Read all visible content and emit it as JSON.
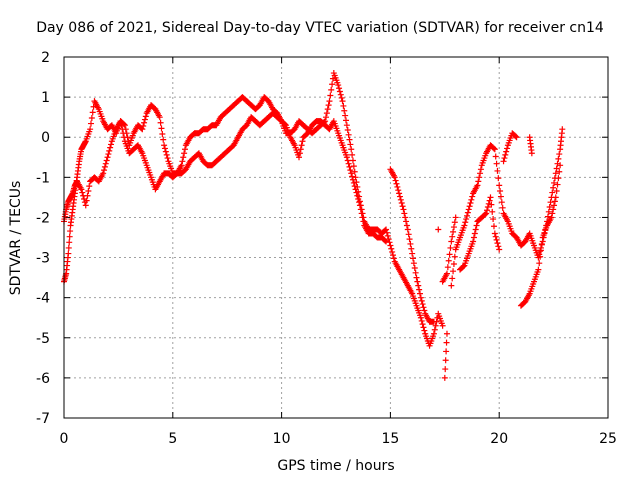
{
  "chart_data": {
    "type": "scatter",
    "title": "Day 086 of 2021, Sidereal Day-to-day VTEC variation (SDTVAR) for receiver cn14",
    "xlabel": "GPS time / hours",
    "ylabel": "SDTVAR / TECUs",
    "xlim": [
      0,
      25
    ],
    "ylim": [
      -7,
      2
    ],
    "xticks": [
      "0",
      "5",
      "10",
      "15",
      "20",
      "25"
    ],
    "yticks": [
      "2",
      "1",
      "0",
      "-1",
      "-2",
      "-3",
      "-4",
      "-5",
      "-6",
      "-7"
    ],
    "grid": true,
    "marker": "+",
    "color": "#ff0000",
    "series": [
      {
        "points": [
          [
            0.0,
            -3.6
          ],
          [
            0.1,
            -3.4
          ],
          [
            0.2,
            -2.9
          ],
          [
            0.3,
            -2.2
          ],
          [
            0.4,
            -1.8
          ],
          [
            0.5,
            -1.4
          ],
          [
            0.6,
            -1.0
          ],
          [
            0.7,
            -0.6
          ],
          [
            0.8,
            -0.3
          ],
          [
            0.9,
            -0.2
          ],
          [
            1.0,
            -0.1
          ],
          [
            1.2,
            0.2
          ],
          [
            1.4,
            0.9
          ],
          [
            1.6,
            0.7
          ],
          [
            1.8,
            0.4
          ],
          [
            2.0,
            0.2
          ],
          [
            2.2,
            0.3
          ],
          [
            2.4,
            0.1
          ],
          [
            2.6,
            0.4
          ],
          [
            2.8,
            0.3
          ],
          [
            3.0,
            -0.2
          ],
          [
            3.2,
            0.1
          ],
          [
            3.4,
            0.3
          ],
          [
            3.6,
            0.2
          ],
          [
            3.8,
            0.6
          ],
          [
            4.0,
            0.8
          ],
          [
            4.2,
            0.7
          ],
          [
            4.4,
            0.5
          ],
          [
            4.6,
            -0.2
          ],
          [
            4.8,
            -0.6
          ],
          [
            5.0,
            -0.9
          ],
          [
            5.2,
            -0.9
          ],
          [
            5.4,
            -0.7
          ],
          [
            5.6,
            -0.2
          ],
          [
            5.8,
            0.0
          ],
          [
            6.0,
            0.1
          ],
          [
            6.2,
            0.1
          ],
          [
            6.4,
            0.2
          ],
          [
            6.6,
            0.2
          ],
          [
            6.8,
            0.3
          ],
          [
            7.0,
            0.3
          ],
          [
            7.2,
            0.5
          ],
          [
            7.4,
            0.6
          ],
          [
            7.6,
            0.7
          ],
          [
            7.8,
            0.8
          ],
          [
            8.0,
            0.9
          ],
          [
            8.2,
            1.0
          ],
          [
            8.4,
            0.9
          ],
          [
            8.6,
            0.8
          ],
          [
            8.8,
            0.7
          ],
          [
            9.0,
            0.8
          ],
          [
            9.2,
            1.0
          ],
          [
            9.4,
            0.9
          ],
          [
            9.6,
            0.7
          ],
          [
            9.8,
            0.6
          ],
          [
            10.0,
            0.4
          ],
          [
            10.2,
            0.1
          ],
          [
            10.4,
            0.1
          ],
          [
            10.6,
            0.2
          ],
          [
            10.8,
            0.4
          ],
          [
            11.0,
            0.3
          ],
          [
            11.2,
            0.2
          ],
          [
            11.4,
            0.1
          ],
          [
            11.6,
            0.2
          ],
          [
            11.8,
            0.3
          ],
          [
            12.0,
            0.4
          ],
          [
            12.2,
            0.9
          ],
          [
            12.4,
            1.6
          ],
          [
            12.6,
            1.3
          ],
          [
            12.8,
            0.9
          ],
          [
            13.0,
            0.3
          ],
          [
            13.2,
            -0.3
          ],
          [
            13.4,
            -1.0
          ],
          [
            13.6,
            -1.6
          ],
          [
            13.8,
            -2.1
          ],
          [
            14.0,
            -2.3
          ],
          [
            14.2,
            -2.3
          ],
          [
            14.4,
            -2.3
          ],
          [
            14.6,
            -2.4
          ],
          [
            14.8,
            -2.3
          ],
          [
            15.0,
            -2.7
          ],
          [
            15.2,
            -3.1
          ],
          [
            15.4,
            -3.3
          ],
          [
            15.6,
            -3.5
          ],
          [
            15.8,
            -3.7
          ],
          [
            16.0,
            -3.9
          ],
          [
            16.2,
            -4.2
          ],
          [
            16.4,
            -4.5
          ],
          [
            16.6,
            -4.9
          ],
          [
            16.8,
            -5.2
          ],
          [
            17.0,
            -4.9
          ],
          [
            17.2,
            -4.4
          ],
          [
            17.4,
            -4.7
          ],
          [
            17.5,
            -6.0
          ],
          [
            17.6,
            -4.9
          ],
          [
            17.8,
            -3.7
          ],
          [
            18.0,
            -2.8
          ],
          [
            18.2,
            -2.5
          ],
          [
            18.4,
            -2.2
          ],
          [
            18.6,
            -1.8
          ],
          [
            18.8,
            -1.4
          ],
          [
            19.0,
            -1.2
          ],
          [
            19.2,
            -0.7
          ],
          [
            19.4,
            -0.4
          ],
          [
            19.6,
            -0.2
          ],
          [
            19.8,
            -0.3
          ],
          [
            20.0,
            -1.2
          ],
          [
            20.2,
            -1.9
          ],
          [
            20.4,
            -2.1
          ],
          [
            20.6,
            -2.4
          ],
          [
            20.8,
            -2.5
          ],
          [
            21.0,
            -2.7
          ],
          [
            21.2,
            -2.6
          ],
          [
            21.4,
            -2.4
          ],
          [
            21.6,
            -2.7
          ],
          [
            21.8,
            -3.0
          ],
          [
            22.0,
            -2.6
          ],
          [
            22.2,
            -2.1
          ],
          [
            22.4,
            -1.5
          ],
          [
            22.6,
            -0.9
          ],
          [
            22.8,
            -0.3
          ],
          [
            22.9,
            0.2
          ]
        ]
      },
      {
        "points": [
          [
            0.0,
            -2.1
          ],
          [
            0.1,
            -1.8
          ],
          [
            0.2,
            -1.6
          ],
          [
            0.3,
            -1.5
          ],
          [
            0.4,
            -1.4
          ],
          [
            0.5,
            -1.2
          ],
          [
            0.6,
            -1.1
          ],
          [
            0.8,
            -1.3
          ],
          [
            1.0,
            -1.7
          ],
          [
            1.2,
            -1.1
          ],
          [
            1.4,
            -1.0
          ],
          [
            1.6,
            -1.1
          ],
          [
            1.8,
            -0.9
          ],
          [
            2.0,
            -0.5
          ],
          [
            2.2,
            -0.1
          ],
          [
            2.4,
            0.2
          ],
          [
            2.6,
            0.4
          ],
          [
            2.8,
            -0.1
          ],
          [
            3.0,
            -0.4
          ],
          [
            3.2,
            -0.3
          ],
          [
            3.4,
            -0.2
          ],
          [
            3.6,
            -0.4
          ],
          [
            3.8,
            -0.7
          ],
          [
            4.0,
            -1.0
          ],
          [
            4.2,
            -1.3
          ],
          [
            4.4,
            -1.1
          ],
          [
            4.6,
            -0.9
          ],
          [
            4.8,
            -0.9
          ],
          [
            5.0,
            -1.0
          ],
          [
            5.2,
            -0.9
          ],
          [
            5.4,
            -0.9
          ],
          [
            5.6,
            -0.8
          ],
          [
            5.8,
            -0.6
          ],
          [
            6.0,
            -0.5
          ],
          [
            6.2,
            -0.4
          ],
          [
            6.4,
            -0.6
          ],
          [
            6.6,
            -0.7
          ],
          [
            6.8,
            -0.7
          ],
          [
            7.0,
            -0.6
          ],
          [
            7.2,
            -0.5
          ],
          [
            7.4,
            -0.4
          ],
          [
            7.6,
            -0.3
          ],
          [
            7.8,
            -0.2
          ],
          [
            8.0,
            0.0
          ],
          [
            8.2,
            0.2
          ],
          [
            8.4,
            0.3
          ],
          [
            8.6,
            0.5
          ],
          [
            8.8,
            0.4
          ],
          [
            9.0,
            0.3
          ],
          [
            9.2,
            0.4
          ],
          [
            9.4,
            0.5
          ],
          [
            9.6,
            0.6
          ],
          [
            9.8,
            0.5
          ],
          [
            10.0,
            0.4
          ],
          [
            10.2,
            0.3
          ],
          [
            10.4,
            0.0
          ],
          [
            10.6,
            -0.2
          ],
          [
            10.8,
            -0.5
          ],
          [
            11.0,
            0.0
          ],
          [
            11.2,
            0.1
          ],
          [
            11.4,
            0.3
          ],
          [
            11.6,
            0.4
          ],
          [
            11.8,
            0.4
          ],
          [
            12.0,
            0.3
          ],
          [
            12.2,
            0.2
          ],
          [
            12.4,
            0.4
          ],
          [
            12.6,
            0.1
          ],
          [
            12.8,
            -0.2
          ],
          [
            13.0,
            -0.5
          ],
          [
            13.2,
            -0.9
          ],
          [
            13.4,
            -1.3
          ],
          [
            13.6,
            -1.7
          ],
          [
            13.8,
            -2.2
          ],
          [
            14.0,
            -2.4
          ],
          [
            14.2,
            -2.4
          ],
          [
            14.4,
            -2.5
          ],
          [
            14.6,
            -2.5
          ],
          [
            14.8,
            -2.6
          ],
          [
            15.0,
            -0.8
          ],
          [
            15.2,
            -1.0
          ],
          [
            15.4,
            -1.4
          ],
          [
            15.6,
            -1.8
          ],
          [
            15.8,
            -2.3
          ],
          [
            16.0,
            -2.9
          ],
          [
            16.2,
            -3.5
          ],
          [
            16.4,
            -4.0
          ],
          [
            16.6,
            -4.4
          ],
          [
            16.8,
            -4.6
          ],
          [
            17.0,
            -4.6
          ],
          [
            17.2,
            -2.3
          ],
          [
            17.4,
            -3.6
          ],
          [
            17.6,
            -3.4
          ],
          [
            17.8,
            -2.6
          ],
          [
            18.0,
            -2.0
          ],
          [
            18.2,
            -3.3
          ],
          [
            18.4,
            -3.2
          ],
          [
            18.6,
            -2.9
          ],
          [
            18.8,
            -2.6
          ],
          [
            19.0,
            -2.1
          ],
          [
            19.2,
            -2.0
          ],
          [
            19.4,
            -1.9
          ],
          [
            19.6,
            -1.5
          ],
          [
            19.8,
            -2.4
          ],
          [
            20.0,
            -2.8
          ],
          [
            20.2,
            -0.6
          ],
          [
            20.4,
            -0.2
          ],
          [
            20.6,
            0.1
          ],
          [
            20.8,
            0.0
          ],
          [
            21.0,
            -4.2
          ],
          [
            21.2,
            -4.1
          ],
          [
            21.4,
            -3.9
          ],
          [
            21.6,
            -3.6
          ],
          [
            21.8,
            -3.3
          ],
          [
            22.0,
            -2.5
          ],
          [
            22.2,
            -2.2
          ],
          [
            22.4,
            -2.0
          ],
          [
            22.6,
            -1.5
          ],
          [
            22.8,
            -0.7
          ],
          [
            21.4,
            0.0
          ],
          [
            21.5,
            -0.4
          ]
        ]
      }
    ]
  }
}
